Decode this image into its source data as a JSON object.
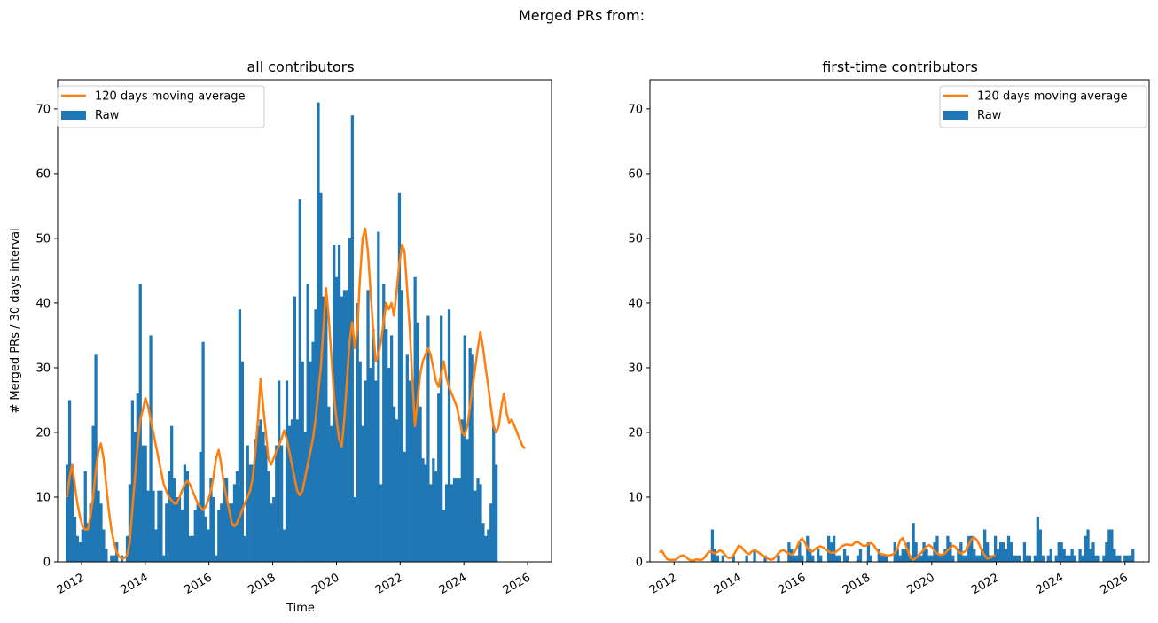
{
  "figure": {
    "suptitle": "Merged PRs from:"
  },
  "colors": {
    "raw": "#1f77b4",
    "moving_average": "#ff7f0e"
  },
  "legend": {
    "line_label": "120 days moving average",
    "bar_label": "Raw"
  },
  "chart_data": [
    {
      "type": "bar",
      "title": "all contributors",
      "xlabel": "Time",
      "ylabel": "# Merged PRs / 30 days interval",
      "ylim": [
        0,
        74.5
      ],
      "xlim": [
        2011.25,
        2026.75
      ],
      "xticks": [
        "2012",
        "2014",
        "2016",
        "2018",
        "2020",
        "2022",
        "2024",
        "2026"
      ],
      "yticks": [
        "0",
        "10",
        "20",
        "30",
        "40",
        "50",
        "60",
        "70"
      ],
      "legend_position": "upper left",
      "grid": false,
      "bin_width_days": 30,
      "start": "2011-07",
      "series": [
        {
          "name": "Raw",
          "type": "bar",
          "values": [
            15,
            25,
            15,
            7,
            4,
            3,
            5,
            14,
            6,
            9,
            21,
            32,
            11,
            9,
            5,
            2,
            0,
            1,
            1,
            3,
            0,
            1,
            0,
            4,
            12,
            25,
            20,
            26,
            43,
            18,
            18,
            11,
            35,
            11,
            5,
            11,
            11,
            1,
            9,
            14,
            21,
            13,
            10,
            10,
            8,
            15,
            14,
            4,
            4,
            8,
            9,
            17,
            34,
            7,
            5,
            13,
            10,
            1,
            8,
            9,
            13,
            13,
            9,
            9,
            12,
            14,
            39,
            31,
            4,
            18,
            15,
            15,
            19,
            21,
            22,
            20,
            18,
            14,
            9,
            10,
            18,
            28,
            18,
            5,
            28,
            21,
            22,
            41,
            22,
            56,
            31,
            20,
            43,
            31,
            34,
            39,
            71,
            57,
            41,
            41,
            24,
            21,
            49,
            44,
            49,
            41,
            42,
            42,
            50,
            69,
            10,
            40,
            31,
            21,
            28,
            42,
            30,
            36,
            28,
            51,
            12,
            43,
            36,
            30,
            35,
            24,
            22,
            57,
            42,
            17,
            32,
            28,
            28,
            44,
            37,
            24,
            16,
            15,
            38,
            12,
            16,
            14,
            26,
            38,
            8,
            12,
            39,
            12,
            13,
            13,
            13,
            22,
            35,
            19,
            33,
            32,
            11,
            13,
            12,
            6,
            4,
            5,
            9,
            21,
            15
          ]
        },
        {
          "name": "120 days moving average",
          "type": "line",
          "values": [
            10,
            13,
            15,
            12,
            9,
            7,
            5.5,
            5,
            5,
            7,
            10,
            14,
            17,
            18.3,
            16,
            12,
            8,
            5,
            3,
            1.5,
            0.8,
            0.5,
            0.6,
            1,
            3,
            8,
            13,
            18,
            22,
            23.5,
            25.3,
            24,
            22,
            20,
            18,
            16,
            14,
            12,
            11,
            10,
            9.5,
            9,
            9,
            10,
            11,
            12,
            12.5,
            12,
            11,
            10,
            9,
            8.5,
            8,
            8.5,
            9.5,
            11,
            13,
            16,
            17.3,
            15,
            12,
            10,
            8,
            6,
            5.5,
            6,
            7,
            8,
            9,
            10,
            11,
            13,
            17,
            22,
            28.3,
            24,
            20,
            16,
            15,
            16,
            17,
            18,
            19,
            20.3,
            19,
            17,
            15,
            13,
            11,
            10.3,
            11,
            13,
            15,
            17,
            19,
            22,
            26,
            30,
            36,
            42.3,
            38,
            32,
            26,
            22,
            19,
            17.8,
            22,
            28,
            34,
            37,
            33,
            36,
            44,
            50,
            51.5,
            48,
            42,
            36,
            31,
            32,
            34,
            37,
            40,
            39,
            40,
            38,
            42,
            46,
            49,
            48,
            42,
            36,
            28,
            21,
            25,
            29,
            31,
            32,
            33,
            32,
            30,
            28,
            27,
            29,
            31,
            28.5,
            27,
            26,
            25,
            24,
            22,
            20,
            19.5,
            21,
            24,
            27,
            30,
            33,
            35.5,
            33,
            30,
            27,
            24,
            21,
            20,
            21,
            24,
            26,
            23,
            21.5,
            22,
            21,
            20,
            19,
            18,
            17.5
          ]
        }
      ]
    },
    {
      "type": "bar",
      "title": "first-time contributors",
      "xlabel": "",
      "ylabel": "",
      "ylim": [
        0,
        74.5
      ],
      "xlim": [
        2011.25,
        2026.75
      ],
      "xticks": [
        "2012",
        "2014",
        "2016",
        "2018",
        "2020",
        "2022",
        "2024",
        "2026"
      ],
      "yticks": [
        "0",
        "10",
        "20",
        "30",
        "40",
        "50",
        "60",
        "70"
      ],
      "legend_position": "upper right",
      "grid": false,
      "bin_width_days": 30,
      "start": "2011-07",
      "series": [
        {
          "name": "Raw",
          "type": "bar",
          "values": [
            0,
            0,
            0,
            0,
            0,
            0,
            0,
            0,
            0,
            0,
            0,
            0,
            0,
            0,
            0,
            0,
            0,
            0,
            0,
            0,
            5,
            2,
            1,
            0,
            1,
            0,
            0,
            0,
            1,
            0,
            0,
            0,
            0,
            1,
            0,
            0,
            2,
            0,
            0,
            0,
            1,
            0,
            0,
            0,
            0,
            1,
            0,
            0,
            0,
            3,
            2,
            1,
            1,
            3,
            1,
            0,
            4,
            2,
            1,
            0,
            2,
            1,
            0,
            0,
            4,
            3,
            4,
            1,
            1,
            0,
            2,
            1,
            0,
            0,
            0,
            1,
            2,
            0,
            0,
            3,
            1,
            0,
            0,
            2,
            1,
            1,
            1,
            0,
            0,
            3,
            2,
            1,
            2,
            2,
            3,
            1,
            6,
            3,
            1,
            1,
            3,
            2,
            1,
            1,
            3,
            4,
            1,
            1,
            2,
            4,
            3,
            1,
            0,
            2,
            3,
            1,
            1,
            4,
            4,
            2,
            1,
            1,
            2,
            5,
            3,
            1,
            1,
            4,
            2,
            3,
            3,
            2,
            4,
            3,
            1,
            1,
            1,
            0,
            3,
            1,
            1,
            0,
            1,
            7,
            5,
            1,
            0,
            1,
            2,
            0,
            1,
            3,
            3,
            2,
            1,
            1,
            2,
            1,
            0,
            2,
            1,
            4,
            5,
            2,
            3,
            1,
            1,
            0,
            1,
            3,
            5,
            5,
            2,
            1,
            1,
            0,
            1,
            1,
            1,
            2
          ]
        },
        {
          "name": "120 days moving average",
          "type": "line",
          "values": [
            1.5,
            1.7,
            1.0,
            0.4,
            0.3,
            0.3,
            0.3,
            0.6,
            0.9,
            1.0,
            0.8,
            0.4,
            0.2,
            0.2,
            0.4,
            0.3,
            0.3,
            0.6,
            1.2,
            1.6,
            1.5,
            1.3,
            1.5,
            1.8,
            1.5,
            1.0,
            0.6,
            0.6,
            1.0,
            1.7,
            2.5,
            2.3,
            1.8,
            1.4,
            1.2,
            1.6,
            1.8,
            1.6,
            1.3,
            1.0,
            0.8,
            0.5,
            0.3,
            0.4,
            0.8,
            1.3,
            1.7,
            1.8,
            1.5,
            1.3,
            1.1,
            1.4,
            2.2,
            3.2,
            3.6,
            3.0,
            2.2,
            1.6,
            1.6,
            2.0,
            2.3,
            2.4,
            2.2,
            1.9,
            1.6,
            1.4,
            1.4,
            1.6,
            2.0,
            2.4,
            2.6,
            2.7,
            2.6,
            2.6,
            3.0,
            3.1,
            2.8,
            2.5,
            2.5,
            2.7,
            2.9,
            2.6,
            2.0,
            1.4,
            1.2,
            1.1,
            1.0,
            1.0,
            1.1,
            1.4,
            2.0,
            3.3,
            3.7,
            2.8,
            1.6,
            0.6,
            0.3,
            0.6,
            1.0,
            1.4,
            1.9,
            2.4,
            2.6,
            2.3,
            1.7,
            1.3,
            1.1,
            1.1,
            1.3,
            1.8,
            2.2,
            2.5,
            2.3,
            1.6,
            1.3,
            1.5,
            1.7,
            2.6,
            3.5,
            3.8,
            3.4,
            2.6,
            1.7,
            1.0,
            0.5,
            0.6,
            0.9,
            1.0
          ]
        }
      ]
    }
  ]
}
